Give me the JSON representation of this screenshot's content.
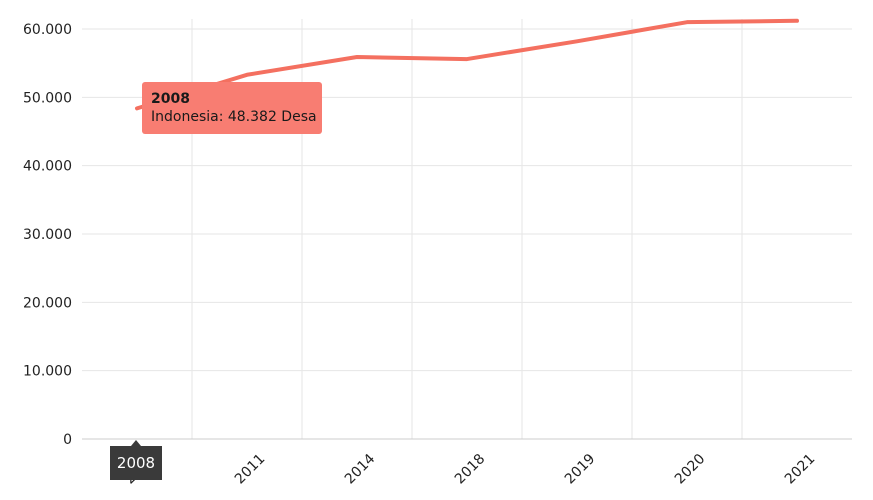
{
  "chart_data": {
    "type": "line",
    "categories": [
      "2008",
      "2011",
      "2014",
      "2018",
      "2019",
      "2020",
      "2021"
    ],
    "series": [
      {
        "name": "Indonesia",
        "values": [
          48382,
          53300,
          55900,
          55600,
          58200,
          61000,
          61200
        ]
      }
    ],
    "ylim": [
      0,
      60000
    ],
    "yticks": [
      0,
      10000,
      20000,
      30000,
      40000,
      50000,
      60000
    ],
    "ytick_labels": [
      "0",
      "10.000",
      "20.000",
      "30.000",
      "40.000",
      "50.000",
      "60.000"
    ],
    "grid": true,
    "colors": {
      "line": "#f47060",
      "tooltip_bg": "#f87d72",
      "grid": "#e6e6e6"
    }
  },
  "tooltip": {
    "title": "2008",
    "body": "Indonesia: 48.382 Desa"
  },
  "x_marker": {
    "label": "2008"
  }
}
